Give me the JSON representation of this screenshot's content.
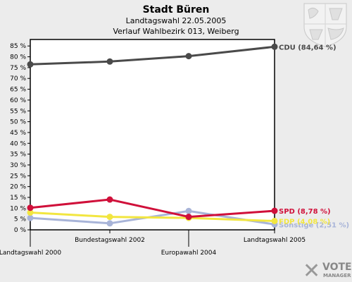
{
  "chart_data": {
    "type": "line",
    "title": "Stadt Büren",
    "subtitle_lines": [
      "Landtagswahl 22.05.2005",
      "Verlauf Wahlbezirk 013, Weiberg"
    ],
    "categories": [
      "Landtagswahl 2000",
      "Bundestagswahl 2002",
      "Europawahl 2004",
      "Landtagswahl 2005"
    ],
    "y_ticks": [
      "0 %",
      "5 %",
      "10 %",
      "15 %",
      "20 %",
      "25 %",
      "30 %",
      "35 %",
      "40 %",
      "45 %",
      "50 %",
      "55 %",
      "60 %",
      "65 %",
      "70 %",
      "75 %",
      "80 %",
      "85 %"
    ],
    "ylim": [
      0,
      88
    ],
    "grid": false,
    "series": [
      {
        "name": "CDU",
        "label": "CDU (84,64 %)",
        "color": "#4a4a4a",
        "values": [
          76.5,
          77.8,
          80.3,
          84.64
        ]
      },
      {
        "name": "Sonstige",
        "label": "Sonstige (2,51 %)",
        "color": "#a8b4d8",
        "values": [
          5.5,
          3.0,
          8.7,
          2.51
        ]
      },
      {
        "name": "FDP",
        "label": "FDP (4,08 %)",
        "color": "#f2e640",
        "values": [
          8.0,
          6.0,
          5.5,
          4.08
        ]
      },
      {
        "name": "SPD",
        "label": "SPD (8,78 %)",
        "color": "#d0103a",
        "values": [
          10.2,
          14.0,
          6.0,
          8.78
        ]
      }
    ]
  },
  "logo": {
    "line1": "VOTE",
    "line2": "MANAGER",
    "mark": "✕"
  },
  "crest": {
    "name": "nrw-coat-of-arms"
  }
}
